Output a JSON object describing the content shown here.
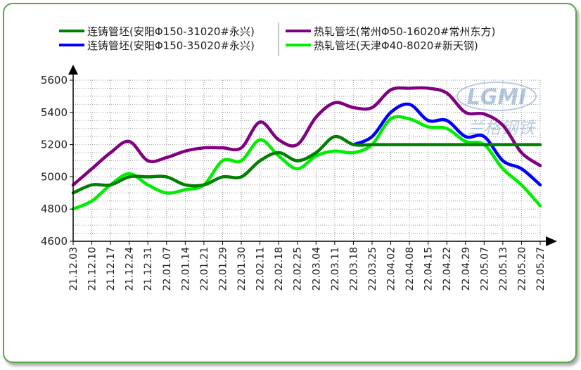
{
  "chart_data": {
    "type": "line",
    "title": "",
    "xlabel": "",
    "ylabel": "",
    "ylim": [
      4600,
      5600
    ],
    "yticks": [
      4600,
      4800,
      5000,
      5200,
      5400,
      5600
    ],
    "grid": true,
    "legend_position": "top",
    "categories": [
      "21.12.03",
      "21.12.10",
      "21.12.17",
      "21.12.24",
      "21.12.31",
      "22.01.07",
      "22.01.14",
      "22.01.21",
      "22.01.29",
      "22.01.30",
      "22.02.11",
      "22.02.18",
      "22.02.25",
      "22.03.04",
      "22.03.11",
      "22.03.18",
      "22.03.25",
      "22.04.02",
      "22.04.08",
      "22.04.15",
      "22.04.22",
      "22.04.29",
      "22.05.07",
      "22.05.13",
      "22.05.20",
      "22.05.27"
    ],
    "series": [
      {
        "name": "连铸管坯(安阳Φ150-31020#永兴)",
        "color": "#008000",
        "values": [
          4900,
          4950,
          4950,
          5000,
          5000,
          5000,
          4950,
          4950,
          5000,
          5000,
          5100,
          5150,
          5100,
          5150,
          5250,
          5200,
          5200,
          5200,
          5200,
          5200,
          5200,
          5200,
          5200,
          5200,
          5200,
          5200
        ]
      },
      {
        "name": "连铸管坯(安阳Φ150-35020#永兴)",
        "color": "#0000ff",
        "values": [
          null,
          null,
          null,
          null,
          null,
          null,
          null,
          null,
          null,
          null,
          null,
          null,
          null,
          null,
          null,
          5200,
          5250,
          5400,
          5450,
          5350,
          5350,
          5250,
          5250,
          5100,
          5050,
          4950
        ]
      },
      {
        "name": "热轧管坯(常州Φ50-16020#常州东方)",
        "color": "#800080",
        "values": [
          4950,
          5050,
          5150,
          5220,
          5100,
          5120,
          5160,
          5180,
          5180,
          5180,
          5340,
          5230,
          5200,
          5370,
          5460,
          5430,
          5430,
          5540,
          5550,
          5550,
          5520,
          5400,
          5390,
          5320,
          5150,
          5070
        ]
      },
      {
        "name": "热轧管坯(天津Φ40-8020#新天钢)",
        "color": "#00ee00",
        "values": [
          4800,
          4850,
          4950,
          5020,
          4950,
          4900,
          4920,
          4950,
          5100,
          5100,
          5230,
          5130,
          5050,
          5130,
          5160,
          5150,
          5200,
          5360,
          5360,
          5310,
          5300,
          5220,
          5200,
          5050,
          4950,
          4820
        ]
      }
    ]
  },
  "watermark": {
    "logo_text": "LGMI",
    "sub_text": "兰格钢铁"
  }
}
